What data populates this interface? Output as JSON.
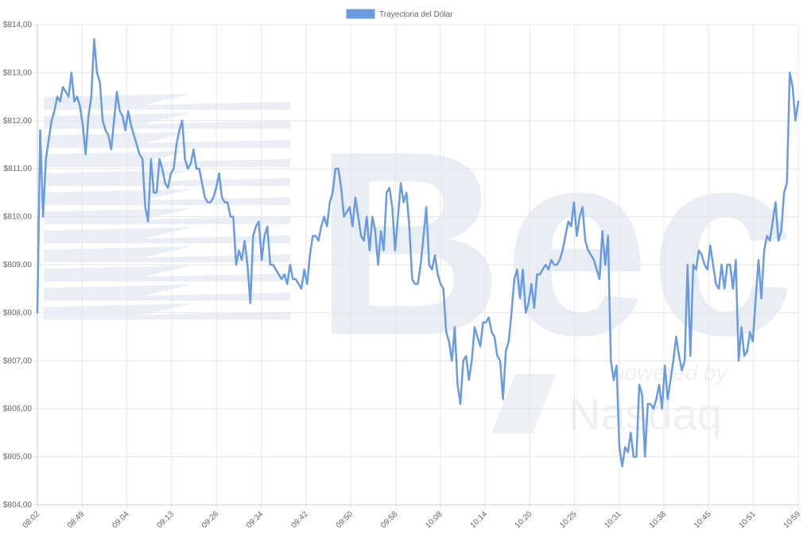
{
  "watermark": {
    "logo_text": "Bec",
    "powered_text": "powered by",
    "brand_text": "Nasdaq"
  },
  "chart_data": {
    "type": "line",
    "legend": {
      "label": "Trayectoria del Dólar",
      "position": "top",
      "color": "#6a9bdf"
    },
    "line_color": "#6a9bdf",
    "grid": true,
    "ylim": [
      804,
      814
    ],
    "y_ticks": [
      {
        "value": 814,
        "label": "$814,00"
      },
      {
        "value": 813,
        "label": "$813,00"
      },
      {
        "value": 812,
        "label": "$812,00"
      },
      {
        "value": 811,
        "label": "$811,00"
      },
      {
        "value": 810,
        "label": "$810,00"
      },
      {
        "value": 809,
        "label": "$809,00"
      },
      {
        "value": 808,
        "label": "$808,00"
      },
      {
        "value": 807,
        "label": "$807,00"
      },
      {
        "value": 806,
        "label": "$806,00"
      },
      {
        "value": 805,
        "label": "$805,00"
      },
      {
        "value": 804,
        "label": "$804,00"
      }
    ],
    "x_tick_labels": [
      "08:02",
      "08:49",
      "09:04",
      "09:13",
      "09:26",
      "09:34",
      "09:42",
      "09:50",
      "09:58",
      "10:08",
      "10:14",
      "10:20",
      "10:25",
      "10:31",
      "10:38",
      "10:45",
      "10:51",
      "10:59"
    ],
    "values": [
      808.0,
      811.8,
      810.0,
      811.2,
      811.6,
      812.0,
      812.2,
      812.5,
      812.4,
      812.7,
      812.6,
      812.5,
      813.0,
      812.4,
      812.5,
      812.3,
      811.9,
      811.3,
      812.1,
      812.5,
      813.7,
      813.0,
      812.8,
      812.0,
      811.8,
      811.7,
      811.4,
      812.0,
      812.6,
      812.2,
      812.1,
      811.8,
      812.2,
      811.9,
      811.7,
      811.5,
      811.3,
      811.2,
      810.2,
      809.9,
      811.2,
      810.5,
      810.5,
      811.2,
      811.0,
      810.7,
      810.6,
      810.9,
      811.0,
      811.5,
      811.8,
      812.0,
      811.2,
      811.0,
      811.1,
      811.4,
      811.0,
      811.0,
      810.7,
      810.4,
      810.3,
      810.3,
      810.4,
      810.6,
      810.9,
      810.4,
      810.3,
      810.3,
      810.0,
      810.0,
      809.0,
      809.3,
      809.1,
      809.5,
      809.0,
      808.2,
      809.6,
      809.8,
      809.9,
      809.1,
      809.6,
      809.8,
      809.0,
      809.0,
      808.9,
      808.8,
      808.7,
      808.8,
      808.6,
      809.0,
      808.7,
      808.7,
      808.6,
      808.5,
      808.9,
      808.6,
      809.2,
      809.6,
      809.6,
      809.5,
      809.8,
      810.0,
      809.8,
      810.3,
      810.5,
      811.0,
      811.0,
      810.6,
      810.0,
      810.1,
      810.2,
      809.8,
      810.4,
      810.0,
      809.6,
      809.5,
      810.0,
      809.3,
      810.0,
      809.7,
      809.0,
      809.7,
      809.3,
      810.5,
      810.6,
      810.2,
      809.3,
      810.0,
      810.7,
      810.3,
      810.5,
      809.8,
      808.7,
      808.6,
      808.6,
      809.0,
      809.6,
      810.2,
      809.0,
      808.9,
      809.2,
      808.8,
      808.6,
      808.5,
      807.6,
      807.4,
      807.0,
      807.7,
      806.5,
      806.1,
      807.0,
      807.1,
      806.6,
      807.0,
      807.7,
      807.5,
      807.3,
      807.8,
      807.8,
      807.9,
      807.6,
      807.5,
      807.1,
      807.0,
      806.2,
      807.2,
      807.4,
      808.0,
      808.7,
      808.9,
      808.3,
      808.9,
      808.0,
      808.2,
      808.6,
      808.1,
      808.8,
      808.8,
      808.9,
      809.0,
      808.9,
      809.1,
      809.0,
      809.0,
      809.1,
      809.3,
      809.6,
      809.9,
      809.8,
      810.3,
      809.6,
      810.0,
      810.2,
      809.5,
      809.3,
      809.2,
      809.1,
      808.9,
      808.7,
      809.7,
      809.0,
      809.6,
      807.0,
      806.6,
      806.9,
      805.2,
      804.8,
      805.2,
      805.1,
      805.5,
      805.0,
      805.0,
      806.5,
      806.3,
      805.0,
      806.1,
      806.1,
      806.0,
      806.2,
      806.5,
      806.0,
      806.9,
      806.2,
      806.6,
      807.0,
      807.5,
      807.1,
      806.8,
      807.0,
      809.0,
      807.1,
      809.0,
      808.9,
      809.3,
      809.2,
      809.0,
      808.9,
      809.4,
      809.0,
      808.6,
      808.5,
      809.0,
      808.5,
      809.0,
      809.0,
      808.5,
      809.1,
      807.0,
      807.7,
      807.1,
      807.2,
      807.6,
      807.4,
      808.3,
      809.1,
      808.3,
      809.3,
      809.6,
      809.5,
      809.9,
      810.3,
      809.5,
      809.7,
      810.5,
      810.7,
      813.0,
      812.7,
      812.0,
      812.4
    ]
  }
}
